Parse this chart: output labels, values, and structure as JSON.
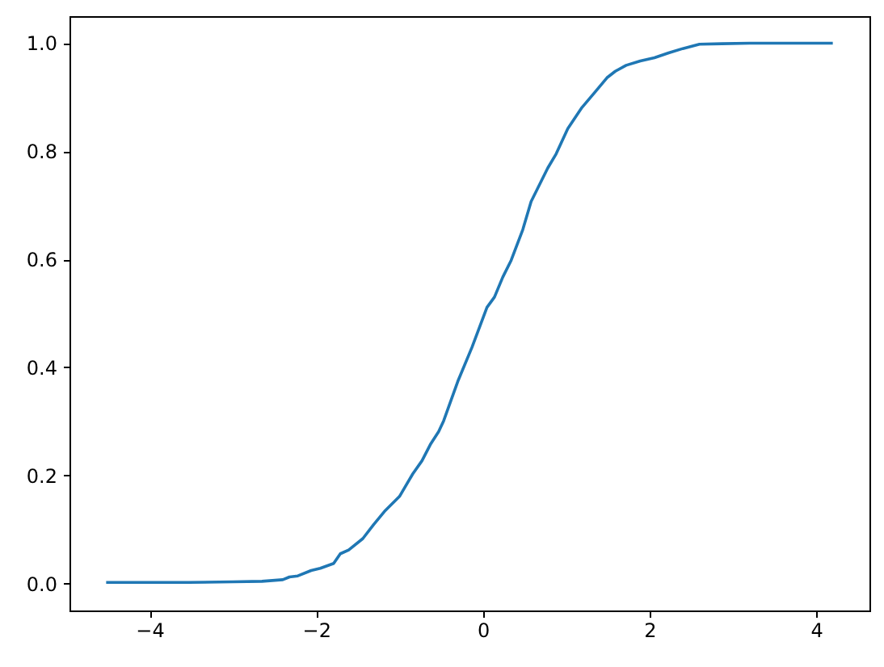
{
  "chart_data": {
    "type": "line",
    "color": "#1f77b4",
    "x": [
      -4.52,
      -3.53,
      -3.0,
      -2.65,
      -2.4,
      -2.32,
      -2.22,
      -2.06,
      -1.95,
      -1.79,
      -1.71,
      -1.61,
      -1.44,
      -1.31,
      -1.17,
      -1.0,
      -0.84,
      -0.73,
      -0.63,
      -0.53,
      -0.47,
      -0.3,
      -0.13,
      -0.03,
      0.05,
      0.14,
      0.24,
      0.34,
      0.48,
      0.58,
      0.68,
      0.78,
      0.88,
      1.02,
      1.19,
      1.35,
      1.49,
      1.59,
      1.72,
      1.89,
      2.06,
      2.23,
      2.4,
      2.6,
      2.87,
      3.2,
      4.2
    ],
    "values": [
      0.002,
      0.002,
      0.003,
      0.004,
      0.007,
      0.012,
      0.014,
      0.024,
      0.028,
      0.037,
      0.055,
      0.062,
      0.083,
      0.109,
      0.135,
      0.161,
      0.203,
      0.227,
      0.257,
      0.281,
      0.301,
      0.374,
      0.437,
      0.478,
      0.511,
      0.53,
      0.567,
      0.598,
      0.655,
      0.707,
      0.738,
      0.769,
      0.795,
      0.842,
      0.881,
      0.91,
      0.936,
      0.948,
      0.959,
      0.967,
      0.973,
      0.982,
      0.99,
      0.998,
      0.999,
      1.0,
      1.0
    ],
    "xlim": [
      -4.96,
      4.64
    ],
    "ylim": [
      -0.05,
      1.05
    ],
    "xticks": [
      {
        "value": -4,
        "label": "−4"
      },
      {
        "value": -2,
        "label": "−2"
      },
      0,
      2,
      4
    ],
    "yticks": [
      {
        "value": 0,
        "label": "0.0"
      },
      {
        "value": 0.2,
        "label": "0.2"
      },
      {
        "value": 0.4,
        "label": "0.4"
      },
      {
        "value": 0.6,
        "label": "0.6"
      },
      {
        "value": 0.8,
        "label": "0.8"
      },
      {
        "value": 1.0,
        "label": "1.0"
      }
    ],
    "grid": false
  }
}
